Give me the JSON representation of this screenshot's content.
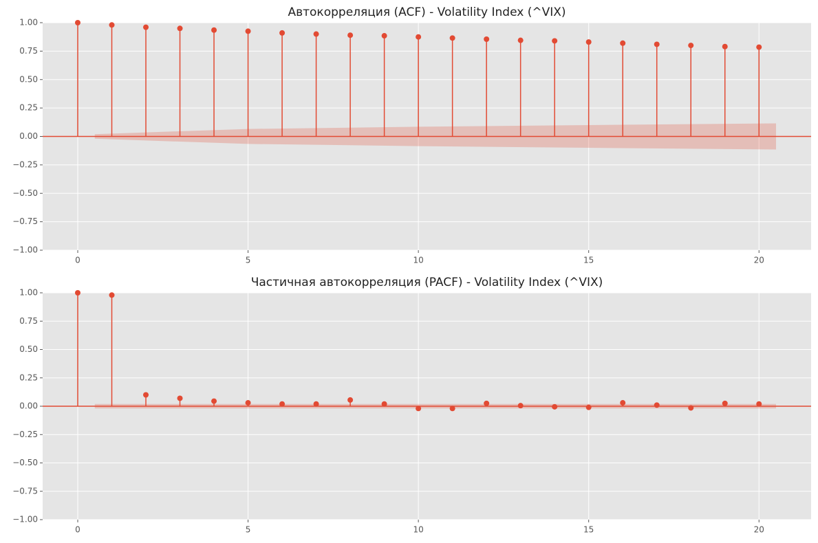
{
  "chart_data": [
    {
      "type": "stem",
      "title": "Автокорреляция (ACF) - Volatility Index (^VIX)",
      "color": "#e24a33",
      "grid": true,
      "x": [
        0,
        1,
        2,
        3,
        4,
        5,
        6,
        7,
        8,
        9,
        10,
        11,
        12,
        13,
        14,
        15,
        16,
        17,
        18,
        19,
        20
      ],
      "values": [
        1,
        0.98,
        0.96,
        0.95,
        0.935,
        0.925,
        0.91,
        0.9,
        0.89,
        0.885,
        0.875,
        0.865,
        0.855,
        0.845,
        0.84,
        0.83,
        0.82,
        0.81,
        0.8,
        0.79,
        0.785
      ],
      "band": {
        "x": [
          0.5,
          5,
          10,
          15,
          20.5
        ],
        "upper": [
          0.02,
          0.066,
          0.085,
          0.1,
          0.115
        ],
        "lower": [
          -0.02,
          -0.066,
          -0.085,
          -0.1,
          -0.115
        ]
      },
      "xlim": [
        -1.03,
        21.53
      ],
      "ylim": [
        -1,
        1
      ],
      "xticks": [
        0,
        5,
        10,
        15,
        20
      ],
      "yticks": [
        {
          "value": -1,
          "label": "−1.00"
        },
        {
          "value": -0.75,
          "label": "−0.75"
        },
        {
          "value": -0.5,
          "label": "−0.50"
        },
        {
          "value": -0.25,
          "label": "−0.25"
        },
        {
          "value": 0,
          "label": "0.00"
        },
        {
          "value": 0.25,
          "label": "0.25"
        },
        {
          "value": 0.5,
          "label": "0.50"
        },
        {
          "value": 0.75,
          "label": "0.75"
        },
        {
          "value": 1,
          "label": "1.00"
        }
      ]
    },
    {
      "type": "stem",
      "title": "Частичная автокорреляция (PACF) - Volatility Index (^VIX)",
      "color": "#e24a33",
      "grid": true,
      "x": [
        0,
        1,
        2,
        3,
        4,
        5,
        6,
        7,
        8,
        9,
        10,
        11,
        12,
        13,
        14,
        15,
        16,
        17,
        18,
        19,
        20
      ],
      "values": [
        1,
        0.98,
        0.1,
        0.07,
        0.045,
        0.03,
        0.02,
        0.02,
        0.055,
        0.02,
        -0.02,
        -0.02,
        0.025,
        0.005,
        -0.005,
        -0.01,
        0.03,
        0.01,
        -0.015,
        0.025,
        0.02
      ],
      "band": {
        "x": [
          0.5,
          20.5
        ],
        "upper": [
          0.02,
          0.02
        ],
        "lower": [
          -0.02,
          -0.02
        ]
      },
      "xlim": [
        -1.03,
        21.53
      ],
      "ylim": [
        -1,
        1
      ],
      "xticks": [
        0,
        5,
        10,
        15,
        20
      ],
      "yticks": [
        {
          "value": -1,
          "label": "−1.00"
        },
        {
          "value": -0.75,
          "label": "−0.75"
        },
        {
          "value": -0.5,
          "label": "−0.50"
        },
        {
          "value": -0.25,
          "label": "−0.25"
        },
        {
          "value": 0,
          "label": "0.00"
        },
        {
          "value": 0.25,
          "label": "0.25"
        },
        {
          "value": 0.5,
          "label": "0.50"
        },
        {
          "value": 0.75,
          "label": "0.75"
        },
        {
          "value": 1,
          "label": "1.00"
        }
      ]
    }
  ]
}
